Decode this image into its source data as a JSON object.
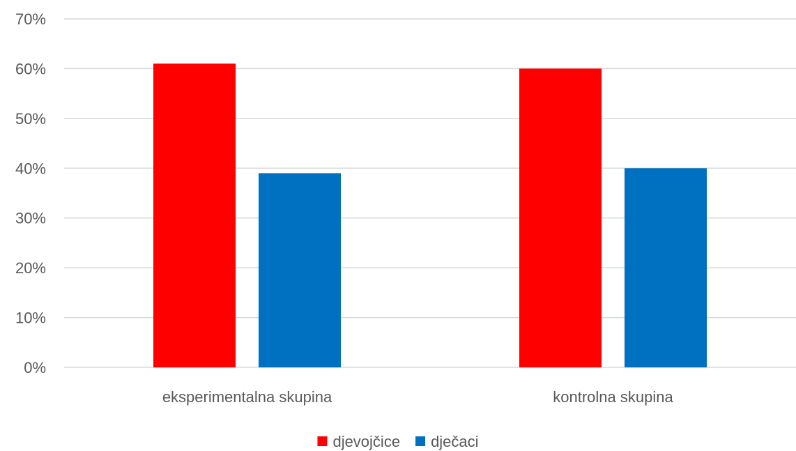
{
  "chart_data": {
    "type": "bar",
    "categories": [
      "eksperimentalna skupina",
      "kontrolna skupina"
    ],
    "series": [
      {
        "name": "djevojčice",
        "values": [
          61,
          60
        ],
        "color": "#ff0000"
      },
      {
        "name": "dječaci",
        "values": [
          39,
          40
        ],
        "color": "#0070c0"
      }
    ],
    "ylim": [
      0,
      70
    ],
    "y_ticks": [
      0,
      10,
      20,
      30,
      40,
      50,
      60,
      70
    ],
    "y_tick_format": "percent",
    "grid": true,
    "legend": "bottom"
  }
}
